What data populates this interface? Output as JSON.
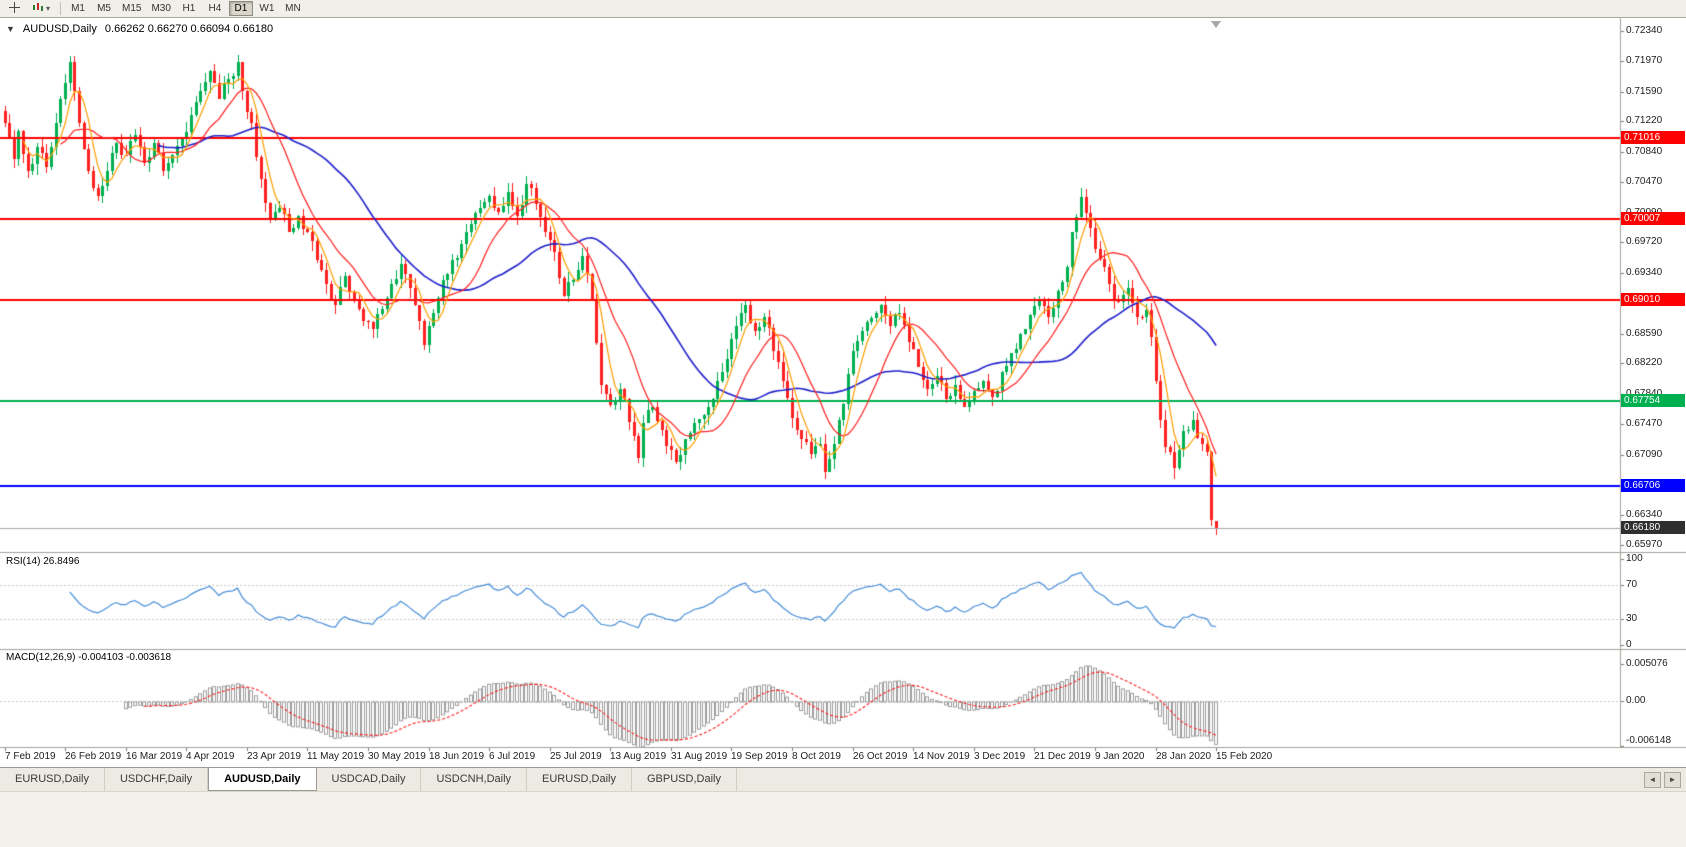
{
  "toolbar": {
    "dropdown_caret": "▾",
    "timeframes": [
      {
        "label": "M1",
        "active": false
      },
      {
        "label": "M5",
        "active": false
      },
      {
        "label": "M15",
        "active": false
      },
      {
        "label": "M30",
        "active": false
      },
      {
        "label": "H1",
        "active": false
      },
      {
        "label": "H4",
        "active": false
      },
      {
        "label": "D1",
        "active": true
      },
      {
        "label": "W1",
        "active": false
      },
      {
        "label": "MN",
        "active": false
      }
    ]
  },
  "chart": {
    "collapse_icon": "▼",
    "title": "AUDUSD,Daily",
    "ohlc_text": "0.66262 0.66270 0.66094 0.66180"
  },
  "rsi": {
    "label": "RSI(14) 26.8496",
    "axis_labels": [
      "100",
      "70",
      "30",
      "0"
    ],
    "levels": [
      70,
      30
    ]
  },
  "macd": {
    "label": "MACD(12,26,9) -0.004103 -0.003618",
    "axis_labels": [
      "0.005076",
      "0.00",
      "-0.006148"
    ]
  },
  "price_axis_labels": [
    "0.72340",
    "0.71970",
    "0.71590",
    "0.71220",
    "0.70840",
    "0.70470",
    "0.70090",
    "0.69720",
    "0.69340",
    "0.68970",
    "0.68590",
    "0.68220",
    "0.67840",
    "0.67470",
    "0.67090",
    "0.66720",
    "0.66340",
    "0.65970"
  ],
  "date_axis_labels": [
    "7 Feb 2019",
    "26 Feb 2019",
    "16 Mar 2019",
    "4 Apr 2019",
    "23 Apr 2019",
    "11 May 2019",
    "30 May 2019",
    "18 Jun 2019",
    "6 Jul 2019",
    "25 Jul 2019",
    "13 Aug 2019",
    "31 Aug 2019",
    "19 Sep 2019",
    "8 Oct 2019",
    "26 Oct 2019",
    "14 Nov 2019",
    "3 Dec 2019",
    "21 Dec 2019",
    "9 Jan 2020",
    "28 Jan 2020",
    "15 Feb 2020"
  ],
  "tabbar": {
    "tabs": [
      {
        "label": "EURUSD,Daily",
        "active": false
      },
      {
        "label": "USDCHF,Daily",
        "active": false
      },
      {
        "label": "AUDUSD,Daily",
        "active": true
      },
      {
        "label": "USDCAD,Daily",
        "active": false
      },
      {
        "label": "USDCNH,Daily",
        "active": false
      },
      {
        "label": "EURUSD,Daily",
        "active": false
      },
      {
        "label": "GBPUSD,Daily",
        "active": false
      }
    ],
    "left_arrow": "◄",
    "right_arrow": "►"
  },
  "colors": {
    "up": "#00B050",
    "down": "#FF2020",
    "ma_fast": "#FF9E00",
    "ma_mid": "#FF2020",
    "ma_slow": "#2020CC",
    "rsi_line": "#4A90D9",
    "macd_hist": "#9E9E9E",
    "macd_signal": "#FF2020",
    "separator": "#A3A19A"
  },
  "chart_data": {
    "type": "candlestick",
    "symbol": "AUDUSD",
    "timeframe": "Daily",
    "bars_total": 261,
    "price_range": {
      "top": 0.7249,
      "bottom": 0.659
    },
    "last_ohlc": {
      "open": 0.66262,
      "high": 0.6627,
      "low": 0.66094,
      "close": 0.6618
    },
    "close_keypoints": [
      [
        0,
        0.712
      ],
      [
        2,
        0.7075
      ],
      [
        3,
        0.711
      ],
      [
        5,
        0.706
      ],
      [
        7,
        0.709
      ],
      [
        9,
        0.7065
      ],
      [
        11,
        0.712
      ],
      [
        13,
        0.717
      ],
      [
        14,
        0.7195
      ],
      [
        16,
        0.712
      ],
      [
        18,
        0.706
      ],
      [
        20,
        0.703
      ],
      [
        22,
        0.706
      ],
      [
        24,
        0.7095
      ],
      [
        26,
        0.708
      ],
      [
        28,
        0.7105
      ],
      [
        30,
        0.707
      ],
      [
        32,
        0.7095
      ],
      [
        34,
        0.706
      ],
      [
        36,
        0.708
      ],
      [
        38,
        0.71
      ],
      [
        40,
        0.713
      ],
      [
        42,
        0.716
      ],
      [
        44,
        0.7185
      ],
      [
        46,
        0.715
      ],
      [
        48,
        0.7175
      ],
      [
        50,
        0.7195
      ],
      [
        51,
        0.716
      ],
      [
        53,
        0.712
      ],
      [
        55,
        0.705
      ],
      [
        57,
        0.7
      ],
      [
        59,
        0.7015
      ],
      [
        61,
        0.6985
      ],
      [
        63,
        0.7005
      ],
      [
        65,
        0.6985
      ],
      [
        67,
        0.695
      ],
      [
        69,
        0.692
      ],
      [
        71,
        0.6895
      ],
      [
        73,
        0.693
      ],
      [
        75,
        0.69
      ],
      [
        77,
        0.6875
      ],
      [
        79,
        0.6865
      ],
      [
        81,
        0.689
      ],
      [
        83,
        0.692
      ],
      [
        85,
        0.6945
      ],
      [
        87,
        0.6915
      ],
      [
        89,
        0.6875
      ],
      [
        90,
        0.6845
      ],
      [
        92,
        0.6885
      ],
      [
        94,
        0.6925
      ],
      [
        96,
        0.695
      ],
      [
        98,
        0.697
      ],
      [
        100,
        0.6995
      ],
      [
        102,
        0.7015
      ],
      [
        104,
        0.703
      ],
      [
        106,
        0.701
      ],
      [
        108,
        0.7035
      ],
      [
        110,
        0.7005
      ],
      [
        112,
        0.7045
      ],
      [
        114,
        0.702
      ],
      [
        116,
        0.6985
      ],
      [
        118,
        0.696
      ],
      [
        120,
        0.6905
      ],
      [
        122,
        0.6925
      ],
      [
        124,
        0.6955
      ],
      [
        126,
        0.69
      ],
      [
        128,
        0.6795
      ],
      [
        130,
        0.677
      ],
      [
        132,
        0.679
      ],
      [
        134,
        0.675
      ],
      [
        136,
        0.6705
      ],
      [
        137,
        0.6748
      ],
      [
        139,
        0.6768
      ],
      [
        141,
        0.674
      ],
      [
        143,
        0.6715
      ],
      [
        144,
        0.67
      ],
      [
        146,
        0.6728
      ],
      [
        148,
        0.6748
      ],
      [
        150,
        0.6758
      ],
      [
        152,
        0.6778
      ],
      [
        154,
        0.6812
      ],
      [
        156,
        0.6852
      ],
      [
        158,
        0.6885
      ],
      [
        159,
        0.6895
      ],
      [
        161,
        0.6862
      ],
      [
        163,
        0.688
      ],
      [
        165,
        0.6838
      ],
      [
        167,
        0.68
      ],
      [
        169,
        0.6755
      ],
      [
        171,
        0.6728
      ],
      [
        173,
        0.671
      ],
      [
        175,
        0.6722
      ],
      [
        176,
        0.6688
      ],
      [
        178,
        0.6722
      ],
      [
        180,
        0.6772
      ],
      [
        182,
        0.6838
      ],
      [
        184,
        0.6862
      ],
      [
        186,
        0.6878
      ],
      [
        188,
        0.6895
      ],
      [
        190,
        0.6868
      ],
      [
        192,
        0.6885
      ],
      [
        194,
        0.6848
      ],
      [
        196,
        0.6818
      ],
      [
        198,
        0.679
      ],
      [
        200,
        0.6806
      ],
      [
        202,
        0.6778
      ],
      [
        204,
        0.6795
      ],
      [
        206,
        0.6768
      ],
      [
        208,
        0.6788
      ],
      [
        210,
        0.68
      ],
      [
        212,
        0.678
      ],
      [
        214,
        0.6812
      ],
      [
        216,
        0.6835
      ],
      [
        218,
        0.6858
      ],
      [
        220,
        0.6882
      ],
      [
        222,
        0.69
      ],
      [
        224,
        0.688
      ],
      [
        226,
        0.6912
      ],
      [
        228,
        0.6942
      ],
      [
        229,
        0.6985
      ],
      [
        231,
        0.7028
      ],
      [
        233,
        0.699
      ],
      [
        235,
        0.6952
      ],
      [
        237,
        0.692
      ],
      [
        239,
        0.6898
      ],
      [
        241,
        0.6915
      ],
      [
        243,
        0.688
      ],
      [
        245,
        0.6888
      ],
      [
        246,
        0.6855
      ],
      [
        247,
        0.68
      ],
      [
        249,
        0.6718
      ],
      [
        251,
        0.6692
      ],
      [
        253,
        0.6738
      ],
      [
        255,
        0.6752
      ],
      [
        257,
        0.6722
      ],
      [
        258,
        0.6712
      ],
      [
        259,
        0.6628
      ],
      [
        260,
        0.6618
      ]
    ],
    "moving_averages": [
      {
        "name": "fast",
        "type": "sma",
        "period": 5,
        "color": "#FF9E00"
      },
      {
        "name": "mid",
        "type": "sma",
        "period": 13,
        "color": "#FF2020"
      },
      {
        "name": "slow",
        "type": "sma",
        "period": 34,
        "color": "#2020CC"
      }
    ],
    "horizontal_lines": [
      {
        "value": 0.71016,
        "color": "#FF0000",
        "tag": "0.71016"
      },
      {
        "value": 0.70007,
        "color": "#FF0000",
        "tag": "0.70007"
      },
      {
        "value": 0.6901,
        "color": "#FF0000",
        "tag": "0.69010"
      },
      {
        "value": 0.67754,
        "color": "#00B050",
        "tag": "0.67754"
      },
      {
        "value": 0.66706,
        "color": "#0000FF",
        "tag": "0.66706"
      }
    ],
    "current_price": {
      "value": 0.6618,
      "tag": "0.66180",
      "tag_bg": "#2F2F2F",
      "line_color": "#A8A8A8"
    },
    "rsi": {
      "period": 14,
      "current": 26.8496
    },
    "macd": {
      "fast": 12,
      "slow": 26,
      "signal": 9,
      "current_macd": -0.004103,
      "current_signal": -0.003618,
      "axis_max": 0.005076,
      "axis_min": -0.006148
    }
  }
}
